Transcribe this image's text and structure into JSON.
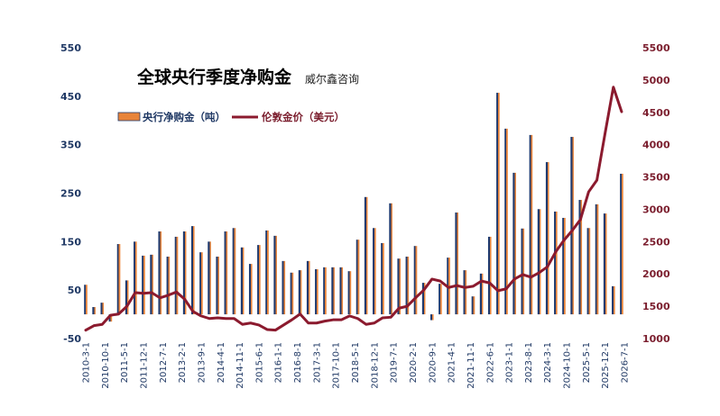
{
  "chart_data": {
    "type": "bar",
    "title": "全球央行季度净购金",
    "subtitle": "威尔鑫咨询",
    "legend_position": "top-left",
    "grid": false,
    "x_range": [
      "2010-3-1",
      "2026-7-1"
    ],
    "x_ticks": [
      "2010-3-1",
      "2010-10-1",
      "2011-5-1",
      "2011-12-1",
      "2012-7-1",
      "2013-2-1",
      "2013-9-1",
      "2014-4-1",
      "2014-11-1",
      "2015-6-1",
      "2016-1-1",
      "2016-8-1",
      "2017-3-1",
      "2017-10-1",
      "2018-5-1",
      "2018-12-1",
      "2019-7-1",
      "2020-2-1",
      "2020-9-1",
      "2021-4-1",
      "2021-11-1",
      "2022-6-1",
      "2023-1-1",
      "2023-8-1",
      "2024-3-1",
      "2024-10-1",
      "2025-5-1",
      "2025-12-1",
      "2026-7-1"
    ],
    "y_left": {
      "range": [
        -50,
        550
      ],
      "ticks": [
        -50,
        50,
        150,
        250,
        350,
        450,
        550
      ],
      "color": "#1F3864"
    },
    "y_right": {
      "range": [
        1000,
        5500
      ],
      "ticks": [
        1000,
        1500,
        2000,
        2500,
        3000,
        3500,
        4000,
        4500,
        5000,
        5500
      ],
      "color": "#7B1E2E"
    },
    "x": [
      "2010-3-1",
      "2010-6-1",
      "2010-9-1",
      "2010-12-1",
      "2011-3-1",
      "2011-6-1",
      "2011-9-1",
      "2011-12-1",
      "2012-3-1",
      "2012-6-1",
      "2012-9-1",
      "2012-12-1",
      "2013-3-1",
      "2013-6-1",
      "2013-9-1",
      "2013-12-1",
      "2014-3-1",
      "2014-6-1",
      "2014-9-1",
      "2014-12-1",
      "2015-3-1",
      "2015-6-1",
      "2015-9-1",
      "2015-12-1",
      "2016-3-1",
      "2016-6-1",
      "2016-9-1",
      "2016-12-1",
      "2017-3-1",
      "2017-6-1",
      "2017-9-1",
      "2017-12-1",
      "2018-3-1",
      "2018-6-1",
      "2018-9-1",
      "2018-12-1",
      "2019-3-1",
      "2019-6-1",
      "2019-9-1",
      "2019-12-1",
      "2020-3-1",
      "2020-6-1",
      "2020-9-1",
      "2020-12-1",
      "2021-3-1",
      "2021-6-1",
      "2021-9-1",
      "2021-12-1",
      "2022-3-1",
      "2022-6-1",
      "2022-9-1",
      "2022-12-1",
      "2023-3-1",
      "2023-6-1",
      "2023-9-1",
      "2023-12-1",
      "2024-3-1",
      "2024-6-1",
      "2024-9-1",
      "2024-12-1",
      "2025-3-1",
      "2025-6-1",
      "2025-9-1",
      "2025-12-1",
      "2026-3-1",
      "2026-6-1"
    ],
    "series": [
      {
        "name": "央行净购金（吨）",
        "type": "bar",
        "axis": "left",
        "color": "#E8843A",
        "edge_color": "#1F3A6E",
        "values": [
          61,
          15,
          24,
          -15,
          145,
          70,
          150,
          121,
          123,
          171,
          119,
          160,
          171,
          182,
          128,
          150,
          119,
          171,
          178,
          138,
          104,
          143,
          173,
          162,
          110,
          86,
          91,
          110,
          93,
          97,
          97,
          97,
          89,
          154,
          242,
          178,
          147,
          229,
          115,
          119,
          141,
          65,
          -12,
          63,
          117,
          210,
          91,
          37,
          84,
          160,
          457,
          383,
          292,
          177,
          370,
          217,
          314,
          212,
          199,
          366,
          236,
          178,
          227,
          208,
          58,
          290
        ]
      },
      {
        "name": "伦敦金价（美元）",
        "type": "line",
        "axis": "right",
        "color": "#8B1A2E",
        "values": [
          1130,
          1200,
          1220,
          1360,
          1380,
          1500,
          1710,
          1700,
          1710,
          1630,
          1670,
          1720,
          1610,
          1420,
          1350,
          1310,
          1320,
          1310,
          1310,
          1220,
          1240,
          1210,
          1140,
          1130,
          1210,
          1290,
          1380,
          1240,
          1240,
          1270,
          1290,
          1290,
          1350,
          1310,
          1220,
          1240,
          1320,
          1330,
          1470,
          1500,
          1630,
          1750,
          1920,
          1890,
          1790,
          1820,
          1790,
          1810,
          1890,
          1860,
          1740,
          1770,
          1920,
          1990,
          1950,
          2020,
          2110,
          2340,
          2520,
          2670,
          2840,
          3270,
          3450,
          4180,
          4890,
          4510
        ]
      }
    ]
  }
}
